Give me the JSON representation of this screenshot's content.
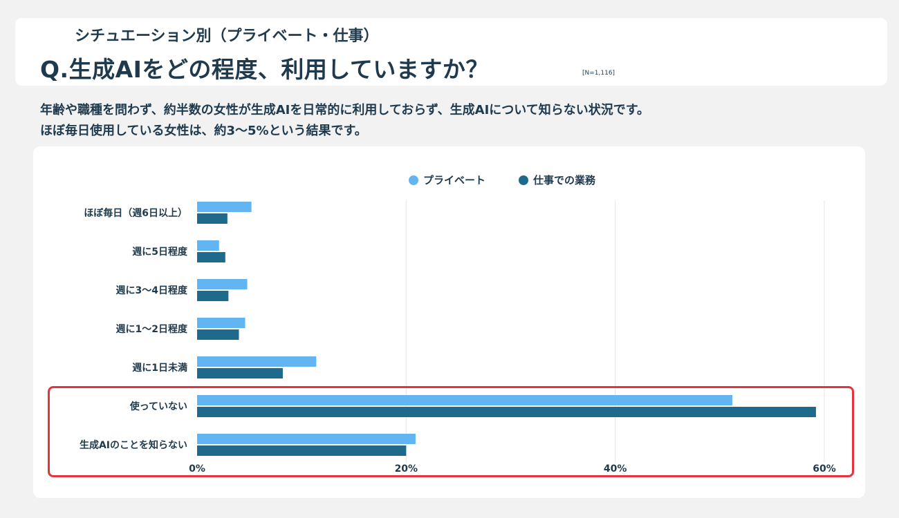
{
  "header": {
    "subtitle": "シチュエーション別（プライベート・仕事）",
    "title": "Q.生成AIをどの程度、利用していますか？",
    "sample_size": "[N=1,116]"
  },
  "description": {
    "line1": "年齢や職種を問わず、約半数の女性が生成AIを日常的に利用しておらず、生成AIについて知らない状況です。",
    "line2": "ほぼ毎日使用している女性は、約3〜5%という結果です。"
  },
  "colors": {
    "private": "#62b5f0",
    "work": "#1d6a8c",
    "highlight": "#e6333b",
    "grid": "#e5e5e5",
    "text": "#1f3a4d"
  },
  "chart_data": {
    "type": "bar",
    "orientation": "horizontal",
    "categories": [
      "ほぼ毎日（週6日以上）",
      "週に5日程度",
      "週に3～4日程度",
      "週に1～2日程度",
      "週に1日未満",
      "使っていない",
      "生成AIのことを知らない"
    ],
    "series": [
      {
        "name": "プライベート",
        "values": [
          5.2,
          2.1,
          4.8,
          4.6,
          11.4,
          51.2,
          20.9
        ]
      },
      {
        "name": "仕事での業務",
        "values": [
          2.9,
          2.7,
          3.0,
          4.0,
          8.2,
          59.2,
          20.0
        ]
      }
    ],
    "xlim": [
      0,
      60
    ],
    "xticks": [
      0,
      20,
      40,
      60
    ],
    "xtick_labels": [
      "0%",
      "20%",
      "40%",
      "60%"
    ],
    "grid": true,
    "legend": "top-center",
    "highlighted_categories": [
      "使っていない",
      "生成AIのことを知らない"
    ]
  }
}
